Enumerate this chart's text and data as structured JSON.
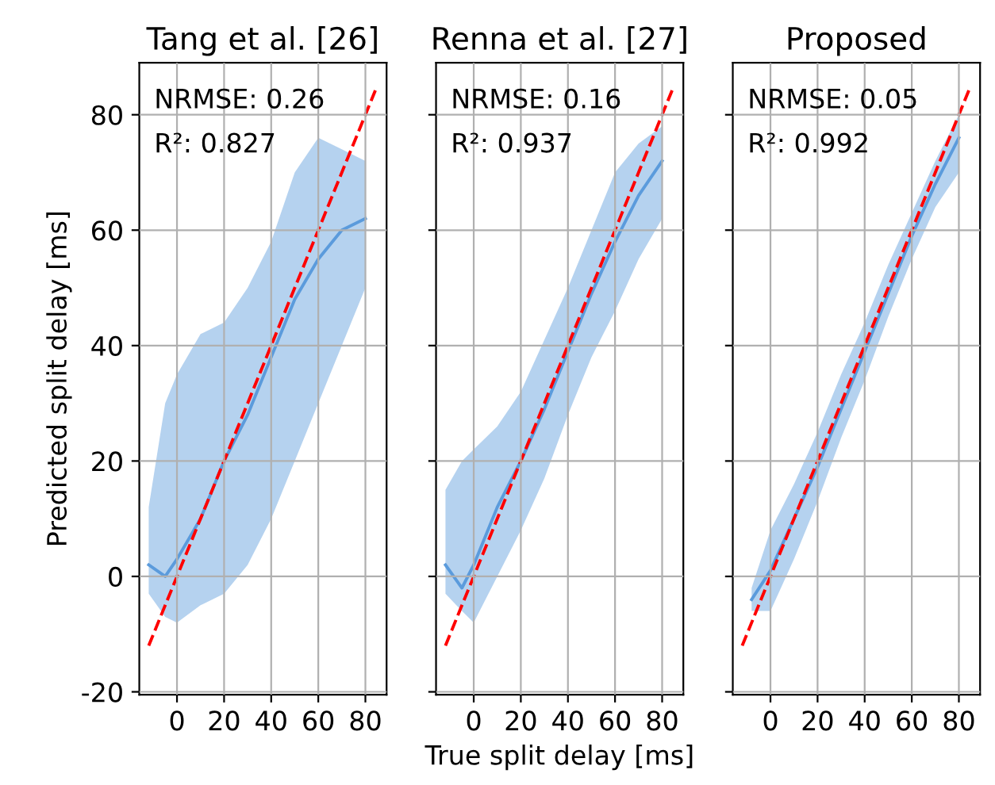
{
  "chart_data": [
    {
      "type": "line",
      "title": "Tang et al. [26]",
      "ylabel": "Predicted split delay [ms]",
      "annotations": [
        "NRMSE: 0.26",
        "R²: 0.827"
      ],
      "xlim": [
        -16,
        89
      ],
      "ylim": [
        -20.5,
        89
      ],
      "xticks": [
        0,
        20,
        40,
        60,
        80
      ],
      "yticks": [
        -20,
        0,
        20,
        40,
        60,
        80
      ],
      "grid": true,
      "series": [
        {
          "color": "#5b9bdc",
          "x": [
            -12,
            -5,
            0,
            10,
            20,
            30,
            40,
            50,
            60,
            70,
            80
          ],
          "values": [
            2,
            0,
            3,
            10,
            20,
            28,
            38,
            48,
            55,
            60,
            62
          ],
          "upper": [
            12,
            30,
            35,
            42,
            44,
            50,
            58,
            70,
            76,
            74,
            72
          ],
          "lower": [
            -3,
            -7,
            -8,
            -5,
            -3,
            2,
            10,
            20,
            30,
            40,
            50
          ]
        },
        {
          "color": "#ff0000",
          "line_style": "dashed",
          "x": [
            -12,
            85
          ],
          "values": [
            -12,
            85
          ]
        }
      ]
    },
    {
      "type": "line",
      "title": "Renna et al. [27]",
      "xlabel": "True split delay [ms]",
      "annotations": [
        "NRMSE: 0.16",
        "R²: 0.937"
      ],
      "xlim": [
        -16,
        89
      ],
      "ylim": [
        -20.5,
        89
      ],
      "xticks": [
        0,
        20,
        40,
        60,
        80
      ],
      "yticks": [
        -20,
        0,
        20,
        40,
        60,
        80
      ],
      "grid": true,
      "tick_labels": "x",
      "series": [
        {
          "color": "#5b9bdc",
          "x": [
            -12,
            -5,
            0,
            10,
            20,
            30,
            40,
            50,
            60,
            70,
            80
          ],
          "values": [
            2,
            -2,
            2,
            12,
            20,
            29,
            39,
            49,
            58,
            66,
            72
          ],
          "upper": [
            15,
            20,
            22,
            26,
            32,
            41,
            50,
            60,
            70,
            75,
            78
          ],
          "lower": [
            -3,
            -6,
            -8,
            0,
            8,
            17,
            28,
            38,
            46,
            55,
            62
          ]
        },
        {
          "color": "#ff0000",
          "line_style": "dashed",
          "x": [
            -12,
            85
          ],
          "values": [
            -12,
            85
          ]
        }
      ]
    },
    {
      "type": "line",
      "title": "Proposed",
      "annotations": [
        "NRMSE: 0.05",
        "R²: 0.992"
      ],
      "xlim": [
        -16,
        89
      ],
      "ylim": [
        -20.5,
        89
      ],
      "xticks": [
        0,
        20,
        40,
        60,
        80
      ],
      "yticks": [
        -20,
        0,
        20,
        40,
        60,
        80
      ],
      "grid": true,
      "tick_labels": "x",
      "series": [
        {
          "color": "#5b9bdc",
          "x": [
            -8,
            0,
            10,
            20,
            30,
            40,
            50,
            60,
            70,
            80
          ],
          "values": [
            -4,
            1,
            10,
            19,
            29,
            39,
            49,
            59,
            68,
            76
          ],
          "upper": [
            -2,
            8,
            16,
            25,
            35,
            44,
            54,
            63,
            72,
            80
          ],
          "lower": [
            -6,
            -6,
            3,
            13,
            24,
            34,
            45,
            55,
            64,
            70
          ]
        },
        {
          "color": "#ff0000",
          "line_style": "dashed",
          "x": [
            -12,
            85
          ],
          "values": [
            -12,
            85
          ]
        }
      ]
    }
  ]
}
